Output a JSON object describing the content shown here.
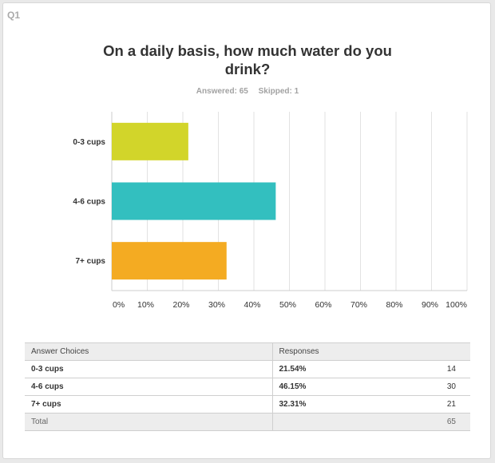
{
  "question_number": "Q1",
  "title": "On a daily basis, how much water do you drink?",
  "answered_label": "Answered: 65",
  "skipped_label": "Skipped: 1",
  "colors": {
    "bar1": "#d2d52a",
    "bar2": "#33bfbf",
    "bar3": "#f4ab22",
    "grid": "#e2e2e2"
  },
  "chart_data": {
    "type": "bar",
    "orientation": "horizontal",
    "categories": [
      "0-3 cups",
      "4-6 cups",
      "7+ cups"
    ],
    "values": [
      21.54,
      46.15,
      32.31
    ],
    "xlim": [
      0,
      100
    ],
    "x_ticks": [
      "0%",
      "10%",
      "20%",
      "30%",
      "40%",
      "50%",
      "60%",
      "70%",
      "80%",
      "90%",
      "100%"
    ],
    "grid": true,
    "title": "On a daily basis, how much water do you drink?"
  },
  "table": {
    "headers": {
      "choice": "Answer Choices",
      "responses": "Responses"
    },
    "rows": [
      {
        "choice": "0-3 cups",
        "percent": "21.54%",
        "count": "14"
      },
      {
        "choice": "4-6 cups",
        "percent": "46.15%",
        "count": "30"
      },
      {
        "choice": "7+ cups",
        "percent": "32.31%",
        "count": "21"
      }
    ],
    "total_label": "Total",
    "total_value": "65"
  }
}
